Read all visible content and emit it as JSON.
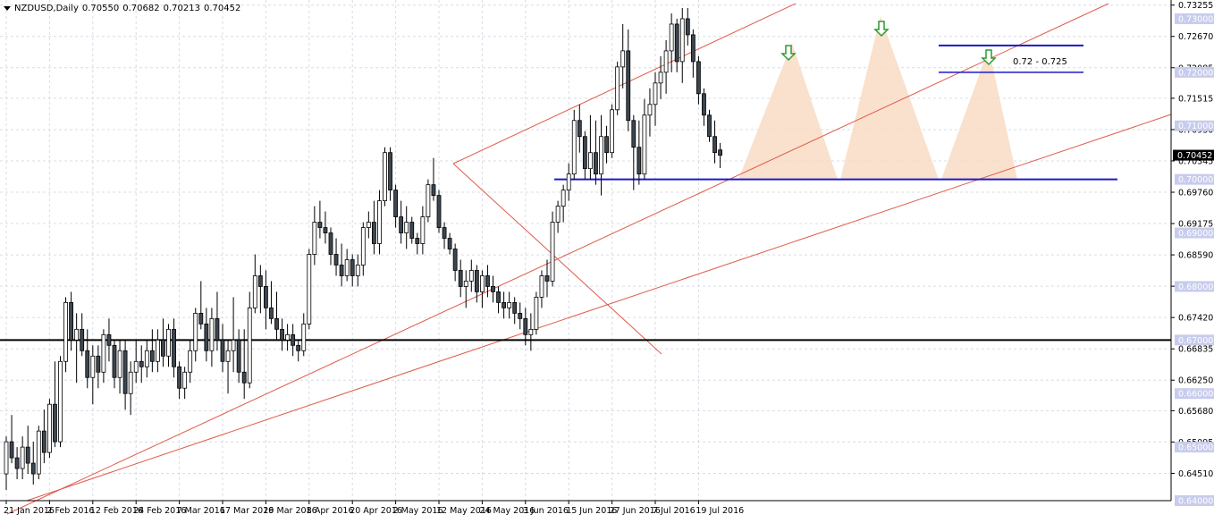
{
  "header": {
    "symbol": "NZDUSD,Daily",
    "open": "0.70550",
    "high": "0.70682",
    "low": "0.70213",
    "close": "0.70452"
  },
  "colors": {
    "background": "#ffffff",
    "grid": "#d8dce6",
    "candle_body": "#3c4650",
    "channel_red": "#e05a4a",
    "support_blue": "#1a1ac8",
    "resistance_black": "#000000",
    "hs_fill": "#f8dcc4",
    "arrow_green": "#2e9a2e",
    "price_label_bg": "#c8ccec"
  },
  "chart_data": {
    "type": "candlestick",
    "title": "NZDUSD,Daily",
    "y_range": [
      0.64,
      0.7335
    ],
    "y_ticks": [
      "0.73255",
      "0.72670",
      "0.72085",
      "0.71515",
      "0.70930",
      "0.70345",
      "0.69760",
      "0.69175",
      "0.68590",
      "0.68005",
      "0.67420",
      "0.66835",
      "0.66250",
      "0.65680",
      "0.65095",
      "0.64510"
    ],
    "y_labels_highlighted": [
      "0.73000",
      "0.72000",
      "0.71000",
      "0.70000",
      "0.69000",
      "0.68000",
      "0.67000",
      "0.66000",
      "0.65000",
      "0.64000"
    ],
    "current_price": "0.70452",
    "key_level_label": "0.67000",
    "x_ticks": [
      "21 Jan 2016",
      "2 Feb 2016",
      "12 Feb 2016",
      "24 Feb 2016",
      "7 Mar 2016",
      "17 Mar 2016",
      "29 Mar 2016",
      "8 Apr 2016",
      "20 Apr 2016",
      "2 May 2016",
      "12 May 2016",
      "24 May 2016",
      "3 Jun 2016",
      "15 Jun 2016",
      "27 Jun 2016",
      "7 Jul 2016",
      "19 Jul 2016"
    ],
    "candles": [
      [
        0.645,
        0.652,
        0.642,
        0.651
      ],
      [
        0.651,
        0.656,
        0.647,
        0.648
      ],
      [
        0.648,
        0.65,
        0.644,
        0.646
      ],
      [
        0.646,
        0.652,
        0.644,
        0.65
      ],
      [
        0.65,
        0.654,
        0.645,
        0.647
      ],
      [
        0.647,
        0.651,
        0.643,
        0.645
      ],
      [
        0.645,
        0.654,
        0.644,
        0.653
      ],
      [
        0.653,
        0.657,
        0.647,
        0.649
      ],
      [
        0.649,
        0.659,
        0.648,
        0.658
      ],
      [
        0.658,
        0.666,
        0.65,
        0.651
      ],
      [
        0.651,
        0.667,
        0.65,
        0.666
      ],
      [
        0.666,
        0.678,
        0.664,
        0.677
      ],
      [
        0.677,
        0.679,
        0.668,
        0.67
      ],
      [
        0.67,
        0.675,
        0.662,
        0.672
      ],
      [
        0.672,
        0.675,
        0.667,
        0.668
      ],
      [
        0.668,
        0.672,
        0.661,
        0.663
      ],
      [
        0.663,
        0.669,
        0.658,
        0.667
      ],
      [
        0.667,
        0.669,
        0.661,
        0.664
      ],
      [
        0.664,
        0.672,
        0.662,
        0.671
      ],
      [
        0.671,
        0.674,
        0.666,
        0.669
      ],
      [
        0.669,
        0.67,
        0.661,
        0.663
      ],
      [
        0.663,
        0.67,
        0.66,
        0.668
      ],
      [
        0.668,
        0.67,
        0.657,
        0.66
      ],
      [
        0.66,
        0.666,
        0.656,
        0.664
      ],
      [
        0.664,
        0.67,
        0.662,
        0.666
      ],
      [
        0.666,
        0.669,
        0.662,
        0.665
      ],
      [
        0.665,
        0.67,
        0.663,
        0.668
      ],
      [
        0.668,
        0.672,
        0.664,
        0.666
      ],
      [
        0.666,
        0.672,
        0.664,
        0.67
      ],
      [
        0.67,
        0.674,
        0.665,
        0.667
      ],
      [
        0.667,
        0.673,
        0.665,
        0.672
      ],
      [
        0.672,
        0.674,
        0.663,
        0.665
      ],
      [
        0.665,
        0.666,
        0.659,
        0.661
      ],
      [
        0.661,
        0.665,
        0.659,
        0.664
      ],
      [
        0.664,
        0.67,
        0.662,
        0.668
      ],
      [
        0.668,
        0.676,
        0.666,
        0.675
      ],
      [
        0.675,
        0.681,
        0.672,
        0.673
      ],
      [
        0.673,
        0.676,
        0.666,
        0.668
      ],
      [
        0.668,
        0.676,
        0.665,
        0.674
      ],
      [
        0.674,
        0.679,
        0.668,
        0.67
      ],
      [
        0.67,
        0.673,
        0.664,
        0.666
      ],
      [
        0.666,
        0.67,
        0.66,
        0.668
      ],
      [
        0.668,
        0.678,
        0.664,
        0.67
      ],
      [
        0.67,
        0.672,
        0.662,
        0.664
      ],
      [
        0.664,
        0.672,
        0.659,
        0.662
      ],
      [
        0.662,
        0.679,
        0.661,
        0.676
      ],
      [
        0.676,
        0.686,
        0.675,
        0.682
      ],
      [
        0.682,
        0.684,
        0.675,
        0.68
      ],
      [
        0.68,
        0.683,
        0.672,
        0.676
      ],
      [
        0.676,
        0.681,
        0.673,
        0.674
      ],
      [
        0.674,
        0.679,
        0.67,
        0.672
      ],
      [
        0.672,
        0.674,
        0.668,
        0.67
      ],
      [
        0.67,
        0.673,
        0.668,
        0.671
      ],
      [
        0.671,
        0.673,
        0.667,
        0.669
      ],
      [
        0.669,
        0.67,
        0.666,
        0.668
      ],
      [
        0.668,
        0.675,
        0.667,
        0.673
      ],
      [
        0.673,
        0.687,
        0.672,
        0.686
      ],
      [
        0.686,
        0.695,
        0.684,
        0.692
      ],
      [
        0.692,
        0.696,
        0.689,
        0.691
      ],
      [
        0.691,
        0.694,
        0.688,
        0.69
      ],
      [
        0.69,
        0.691,
        0.684,
        0.686
      ],
      [
        0.686,
        0.689,
        0.682,
        0.684
      ],
      [
        0.684,
        0.688,
        0.68,
        0.682
      ],
      [
        0.682,
        0.687,
        0.681,
        0.685
      ],
      [
        0.685,
        0.686,
        0.68,
        0.682
      ],
      [
        0.682,
        0.686,
        0.68,
        0.684
      ],
      [
        0.684,
        0.692,
        0.682,
        0.691
      ],
      [
        0.691,
        0.694,
        0.689,
        0.692
      ],
      [
        0.692,
        0.696,
        0.686,
        0.688
      ],
      [
        0.688,
        0.698,
        0.686,
        0.696
      ],
      [
        0.696,
        0.706,
        0.695,
        0.705
      ],
      [
        0.705,
        0.706,
        0.696,
        0.698
      ],
      [
        0.698,
        0.699,
        0.691,
        0.693
      ],
      [
        0.693,
        0.696,
        0.688,
        0.69
      ],
      [
        0.69,
        0.695,
        0.687,
        0.692
      ],
      [
        0.692,
        0.693,
        0.688,
        0.689
      ],
      [
        0.689,
        0.69,
        0.686,
        0.688
      ],
      [
        0.688,
        0.695,
        0.686,
        0.693
      ],
      [
        0.693,
        0.7,
        0.692,
        0.699
      ],
      [
        0.699,
        0.704,
        0.696,
        0.697
      ],
      [
        0.697,
        0.698,
        0.69,
        0.691
      ],
      [
        0.691,
        0.692,
        0.687,
        0.689
      ],
      [
        0.689,
        0.69,
        0.686,
        0.687
      ],
      [
        0.687,
        0.688,
        0.681,
        0.683
      ],
      [
        0.683,
        0.685,
        0.678,
        0.68
      ],
      [
        0.68,
        0.683,
        0.676,
        0.681
      ],
      [
        0.681,
        0.685,
        0.679,
        0.683
      ],
      [
        0.683,
        0.684,
        0.677,
        0.679
      ],
      [
        0.679,
        0.683,
        0.676,
        0.682
      ],
      [
        0.682,
        0.684,
        0.678,
        0.68
      ],
      [
        0.68,
        0.682,
        0.677,
        0.679
      ],
      [
        0.679,
        0.68,
        0.675,
        0.677
      ],
      [
        0.677,
        0.679,
        0.674,
        0.676
      ],
      [
        0.676,
        0.679,
        0.674,
        0.677
      ],
      [
        0.677,
        0.678,
        0.673,
        0.675
      ],
      [
        0.675,
        0.677,
        0.672,
        0.674
      ],
      [
        0.674,
        0.676,
        0.669,
        0.671
      ],
      [
        0.671,
        0.675,
        0.668,
        0.672
      ],
      [
        0.672,
        0.679,
        0.671,
        0.678
      ],
      [
        0.678,
        0.683,
        0.676,
        0.682
      ],
      [
        0.682,
        0.685,
        0.678,
        0.681
      ],
      [
        0.681,
        0.694,
        0.68,
        0.692
      ],
      [
        0.692,
        0.696,
        0.69,
        0.695
      ],
      [
        0.695,
        0.699,
        0.692,
        0.698
      ],
      [
        0.698,
        0.703,
        0.696,
        0.701
      ],
      [
        0.701,
        0.713,
        0.7,
        0.711
      ],
      [
        0.711,
        0.714,
        0.705,
        0.708
      ],
      [
        0.708,
        0.709,
        0.7,
        0.702
      ],
      [
        0.702,
        0.712,
        0.7,
        0.705
      ],
      [
        0.705,
        0.711,
        0.699,
        0.701
      ],
      [
        0.701,
        0.712,
        0.697,
        0.708
      ],
      [
        0.708,
        0.71,
        0.703,
        0.705
      ],
      [
        0.705,
        0.714,
        0.704,
        0.713
      ],
      [
        0.713,
        0.722,
        0.712,
        0.721
      ],
      [
        0.721,
        0.729,
        0.717,
        0.724
      ],
      [
        0.724,
        0.728,
        0.709,
        0.711
      ],
      [
        0.711,
        0.712,
        0.698,
        0.706
      ],
      [
        0.706,
        0.711,
        0.699,
        0.701
      ],
      [
        0.701,
        0.715,
        0.7,
        0.712
      ],
      [
        0.712,
        0.717,
        0.708,
        0.714
      ],
      [
        0.714,
        0.72,
        0.71,
        0.718
      ],
      [
        0.718,
        0.723,
        0.715,
        0.72
      ],
      [
        0.72,
        0.726,
        0.716,
        0.724
      ],
      [
        0.724,
        0.731,
        0.72,
        0.729
      ],
      [
        0.729,
        0.73,
        0.72,
        0.722
      ],
      [
        0.722,
        0.732,
        0.718,
        0.73
      ],
      [
        0.73,
        0.732,
        0.725,
        0.727
      ],
      [
        0.727,
        0.728,
        0.719,
        0.722
      ],
      [
        0.722,
        0.723,
        0.714,
        0.716
      ],
      [
        0.716,
        0.717,
        0.71,
        0.712
      ],
      [
        0.712,
        0.713,
        0.707,
        0.708
      ],
      [
        0.708,
        0.711,
        0.703,
        0.705
      ],
      [
        0.7055,
        0.7068,
        0.7021,
        0.7045
      ]
    ],
    "annotations": {
      "target_zone_label": "0.72 - 0.725",
      "target_upper": 0.725,
      "target_lower": 0.72,
      "neckline": 0.7,
      "key_level": 0.67
    }
  }
}
